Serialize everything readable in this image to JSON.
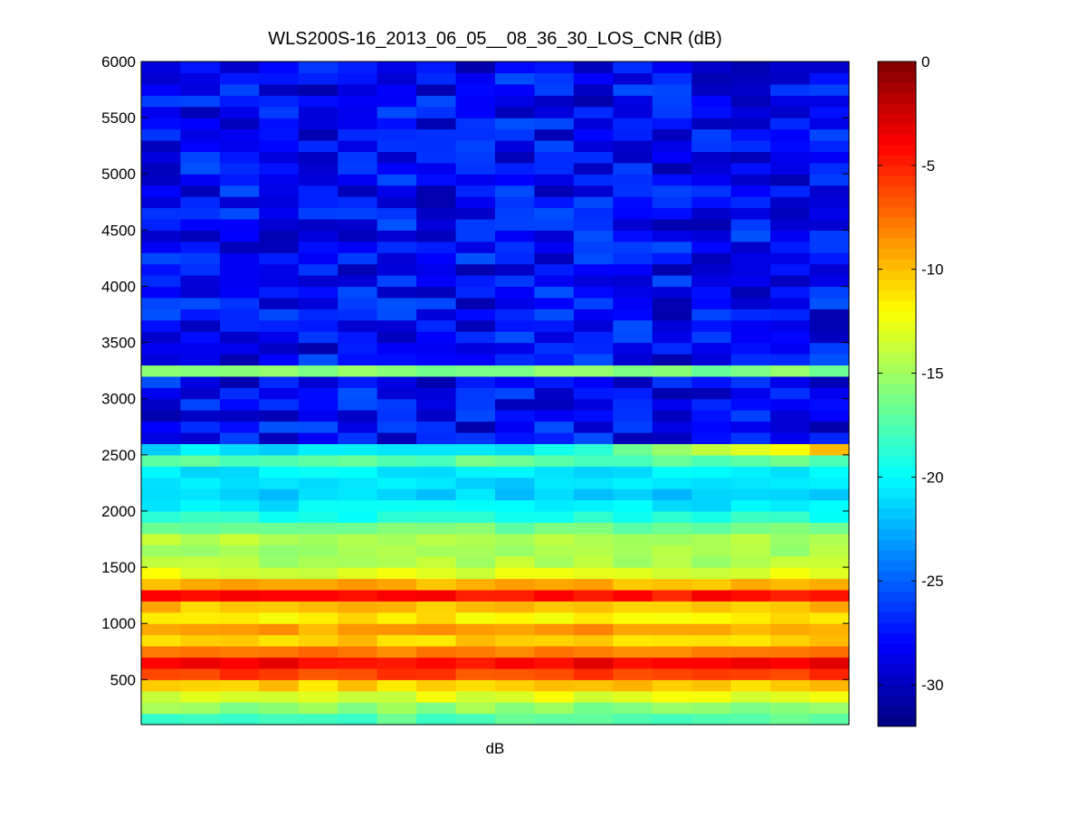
{
  "chart_data": {
    "type": "heatmap",
    "title": "WLS200S-16_2013_06_05__08_36_30_LOS_CNR (dB)",
    "xlabel": "dB",
    "ylabel": "",
    "ylim": [
      100,
      6000
    ],
    "yticks": [
      500,
      1000,
      1500,
      2000,
      2500,
      3000,
      3500,
      4000,
      4500,
      5000,
      5500,
      6000
    ],
    "colorbar": {
      "colormap": "jet",
      "clim": [
        -32,
        0
      ],
      "ticks": [
        0,
        -5,
        -10,
        -15,
        -20,
        -25,
        -30
      ],
      "tick_labels": [
        "0",
        "-5",
        "-10",
        "-15",
        "-20",
        "-25",
        "-30"
      ]
    },
    "columns": 18,
    "rows_ascending_range": [
      {
        "range": [
          100,
          200
        ],
        "value_dB": -17.5
      },
      {
        "range": [
          200,
          300
        ],
        "value_dB": -15.5
      },
      {
        "range": [
          300,
          400
        ],
        "value_dB": -13.0
      },
      {
        "range": [
          400,
          500
        ],
        "value_dB": -10.5
      },
      {
        "range": [
          500,
          600
        ],
        "value_dB": -6.0
      },
      {
        "range": [
          600,
          700
        ],
        "value_dB": -4.0
      },
      {
        "range": [
          700,
          800
        ],
        "value_dB": -8.0
      },
      {
        "range": [
          800,
          900
        ],
        "value_dB": -10.5
      },
      {
        "range": [
          900,
          1000
        ],
        "value_dB": -9.0
      },
      {
        "range": [
          1000,
          1100
        ],
        "value_dB": -11.5
      },
      {
        "range": [
          1100,
          1200
        ],
        "value_dB": -10.0
      },
      {
        "range": [
          1200,
          1300
        ],
        "value_dB": -4.5
      },
      {
        "range": [
          1300,
          1400
        ],
        "value_dB": -9.5
      },
      {
        "range": [
          1400,
          1500
        ],
        "value_dB": -13.0
      },
      {
        "range": [
          1500,
          1600
        ],
        "value_dB": -14.5
      },
      {
        "range": [
          1600,
          1700
        ],
        "value_dB": -15.0
      },
      {
        "range": [
          1700,
          1800
        ],
        "value_dB": -14.5
      },
      {
        "range": [
          1800,
          1900
        ],
        "value_dB": -16.5
      },
      {
        "range": [
          1900,
          2000
        ],
        "value_dB": -19.0
      },
      {
        "range": [
          2000,
          2100
        ],
        "value_dB": -20.5
      },
      {
        "range": [
          2100,
          2200
        ],
        "value_dB": -21.5
      },
      {
        "range": [
          2200,
          2300
        ],
        "value_dB": -21.0
      },
      {
        "range": [
          2300,
          2400
        ],
        "value_dB": -20.5
      },
      {
        "range": [
          2400,
          2500
        ],
        "value_dB": -17.0
      },
      {
        "range": [
          2500,
          2600
        ],
        "value_dB": -21.0,
        "right_side_dB": -10.0
      },
      {
        "range": [
          2600,
          3200
        ],
        "value_dB": -28.0
      },
      {
        "range": [
          3200,
          3300
        ],
        "value_dB": -16.0
      },
      {
        "range": [
          3300,
          6000
        ],
        "value_dB": -28.0
      }
    ]
  }
}
